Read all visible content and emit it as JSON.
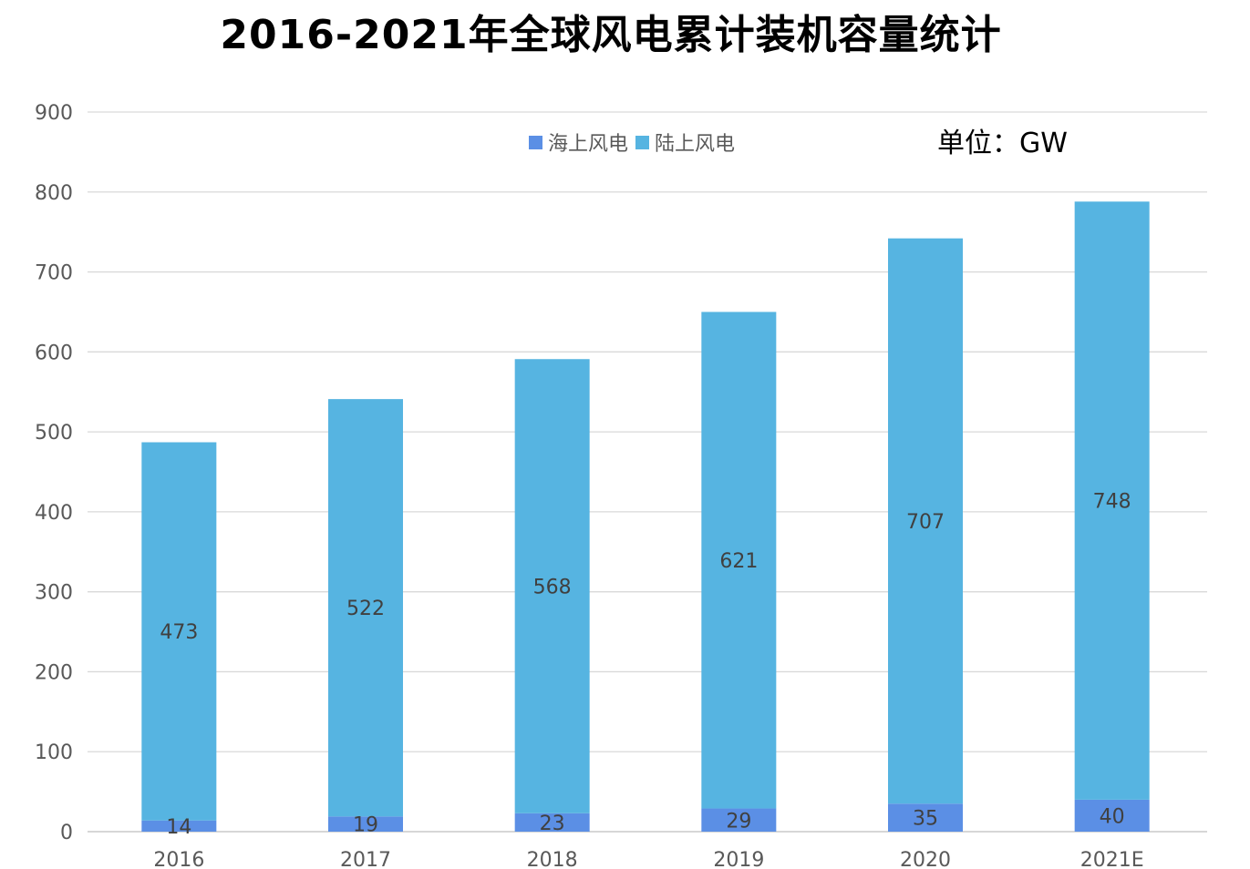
{
  "chart_data": {
    "type": "bar",
    "stacked": true,
    "title": "2016-2021年全球风电累计装机容量统计",
    "unit": "单位：GW",
    "categories": [
      "2016",
      "2017",
      "2018",
      "2019",
      "2020",
      "2021E"
    ],
    "series": [
      {
        "name": "海上风电",
        "values": [
          14,
          19,
          23,
          29,
          35,
          40
        ],
        "color": "#5B8FE5"
      },
      {
        "name": "陆上风电",
        "values": [
          473,
          522,
          568,
          621,
          707,
          748
        ],
        "color": "#56B4E1"
      }
    ],
    "ylim": [
      0,
      900
    ],
    "yticks": [
      0,
      100,
      200,
      300,
      400,
      500,
      600,
      700,
      800,
      900
    ],
    "grid": true,
    "legend_position": "top-center",
    "gridline_color": "#D9D9D9",
    "tick_color": "#595959"
  }
}
